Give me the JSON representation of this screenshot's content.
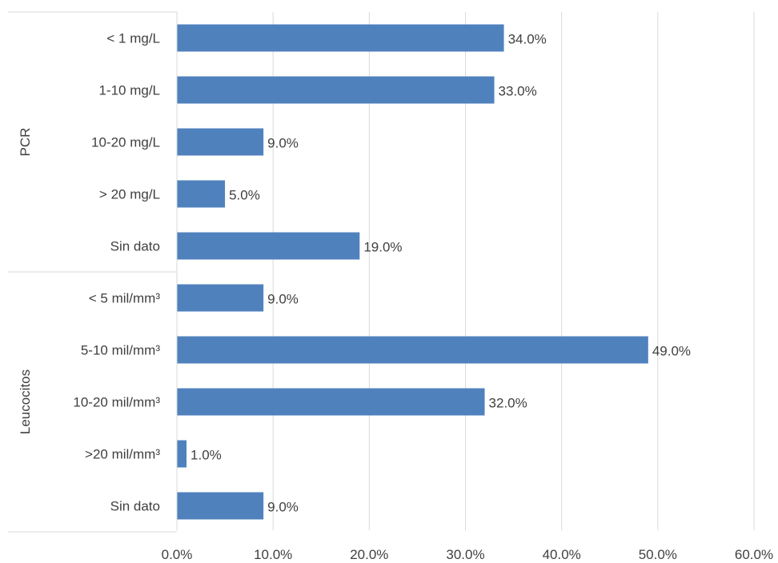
{
  "chart_data": {
    "type": "bar",
    "orientation": "horizontal",
    "title": "",
    "xlabel": "",
    "ylabel": "",
    "xlim": [
      0,
      60
    ],
    "x_ticks": [
      "0.0%",
      "10.0%",
      "20.0%",
      "30.0%",
      "40.0%",
      "50.0%",
      "60.0%"
    ],
    "grid": true,
    "legend": "none",
    "bar_color": "#4F81BD",
    "groups": [
      {
        "name": "PCR",
        "categories": [
          "< 1 mg/L",
          "1-10 mg/L",
          "10-20 mg/L",
          "> 20 mg/L",
          "Sin dato"
        ],
        "values": [
          34.0,
          33.0,
          9.0,
          5.0,
          19.0
        ],
        "value_labels": [
          "34.0%",
          "33.0%",
          "9.0%",
          "5.0%",
          "19.0%"
        ]
      },
      {
        "name": "Leucocitos",
        "categories": [
          "< 5 mil/mm³",
          "5-10 mil/mm³",
          "10-20 mil/mm³",
          ">20 mil/mm³",
          "Sin dato"
        ],
        "values": [
          9.0,
          49.0,
          32.0,
          1.0,
          9.0
        ],
        "value_labels": [
          "9.0%",
          "49.0%",
          "32.0%",
          "1.0%",
          "9.0%"
        ]
      }
    ]
  }
}
